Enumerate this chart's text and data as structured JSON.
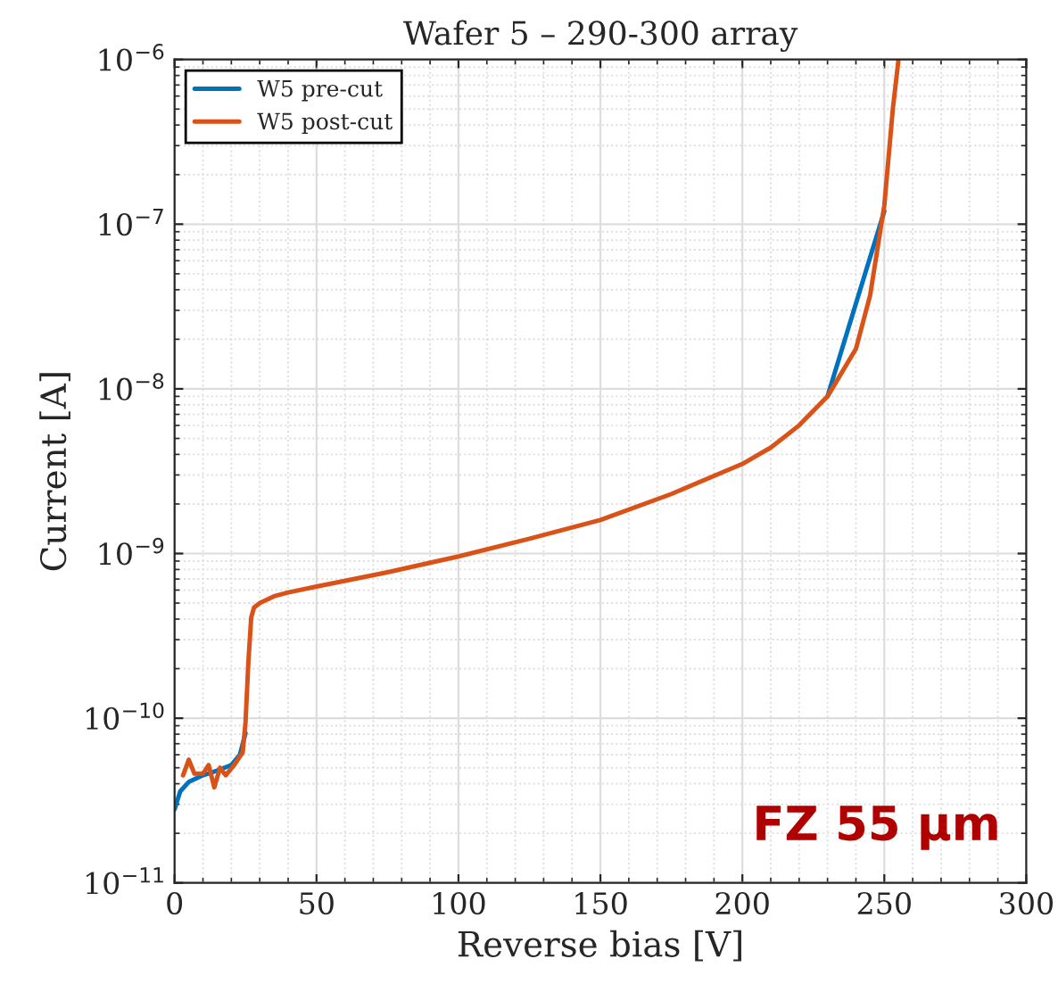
{
  "chart_data": {
    "type": "line",
    "title": "Wafer 5 – 290-300 array",
    "xlabel": "Reverse bias [V]",
    "ylabel": "Current [A]",
    "series": [
      {
        "name": "W5 pre-cut",
        "color": "#0072bd",
        "x": [
          0,
          2,
          5,
          10,
          15,
          20,
          23,
          25,
          26,
          27,
          28,
          30,
          35,
          40,
          50,
          75,
          100,
          125,
          150,
          175,
          200,
          210,
          220,
          230,
          240,
          250
        ],
        "values": [
          2.8e-11,
          3.6e-11,
          4.1e-11,
          4.5e-11,
          4.8e-11,
          5.2e-11,
          6e-11,
          8.1e-11,
          null,
          null,
          null,
          null,
          null,
          null,
          null,
          null,
          null,
          null,
          null,
          null,
          null,
          null,
          null,
          9e-09,
          3.3e-08,
          1.2e-07
        ]
      },
      {
        "name": "W5 post-cut",
        "color": "#d95319",
        "x": [
          3,
          5,
          7,
          10,
          12,
          14,
          16,
          18,
          21,
          24,
          25,
          26,
          27,
          28,
          30,
          35,
          40,
          50,
          75,
          100,
          125,
          150,
          175,
          200,
          210,
          220,
          230,
          240,
          245,
          250,
          253,
          255
        ],
        "values": [
          4.5e-11,
          5.6e-11,
          4.6e-11,
          4.6e-11,
          5.2e-11,
          3.8e-11,
          5e-11,
          4.5e-11,
          5.2e-11,
          6.2e-11,
          9.5e-11,
          2.2e-10,
          4.1e-10,
          4.7e-10,
          5e-10,
          5.5e-10,
          5.8e-10,
          6.3e-10,
          7.7e-10,
          9.6e-10,
          1.23e-09,
          1.6e-09,
          2.3e-09,
          3.5e-09,
          4.4e-09,
          6e-09,
          9e-09,
          1.75e-08,
          3.7e-08,
          1.3e-07,
          5e-07,
          1e-06
        ]
      }
    ],
    "log": "y",
    "xlim": [
      0,
      300
    ],
    "xticks": [
      0,
      50,
      100,
      150,
      200,
      250,
      300
    ],
    "ylim": [
      1e-11,
      1e-06
    ],
    "yticks": [
      {
        "value": 1e-11,
        "label": "10$^{−11}$"
      },
      {
        "value": 1e-10,
        "label": "10$^{−10}$"
      },
      {
        "value": 1e-09,
        "label": "10$^{−9}$"
      },
      {
        "value": 1e-08,
        "label": "10$^{−8}$"
      },
      {
        "value": 1e-07,
        "label": "10$^{−7}$"
      },
      {
        "value": 1e-06,
        "label": "10$^{−6}$"
      }
    ],
    "grid": true,
    "legend": "top left",
    "line_style": "solid",
    "marker": "none",
    "annotations": [
      "FZ 55 µm"
    ]
  }
}
